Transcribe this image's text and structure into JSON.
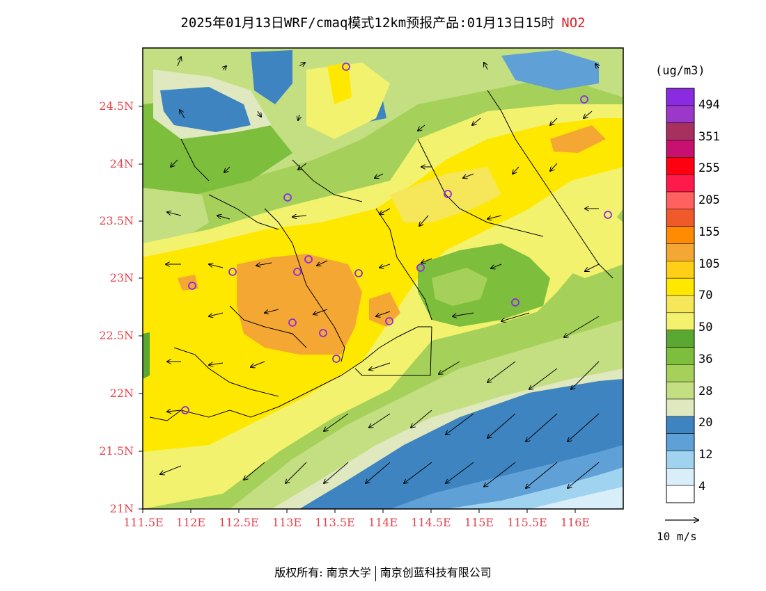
{
  "title": {
    "main": "2025年01月13日WRF/cmaq模式12km预报产品:01月13日15时",
    "pollutant": "NO2"
  },
  "axes": {
    "y_labels": [
      "24.5N",
      "24N",
      "23.5N",
      "23N",
      "22.5N",
      "22N",
      "21.5N",
      "21N"
    ],
    "x_labels": [
      "111.5E",
      "112E",
      "112.5E",
      "113E",
      "113.5E",
      "114E",
      "114.5E",
      "115E",
      "115.5E",
      "116E"
    ]
  },
  "legend": {
    "unit": "(ug/m3)",
    "labels": [
      "494",
      "351",
      "255",
      "205",
      "155",
      "105",
      "70",
      "50",
      "36",
      "28",
      "20",
      "12",
      "4"
    ],
    "colors": [
      "#8a2be2",
      "#9b37c9",
      "#a8305f",
      "#c81070",
      "#ff0010",
      "#ff1a4b",
      "#ff6060",
      "#f05a2a",
      "#ff8c00",
      "#f5a733",
      "#ffcf17",
      "#ffe800",
      "#f5e65a",
      "#f2f26e",
      "#5aa832",
      "#7dbf3c",
      "#a5d15a",
      "#c4de82",
      "#dfe8bf",
      "#3d84c0",
      "#5fa1d6",
      "#9fd3f0",
      "#d8eef8",
      "#ffffff"
    ]
  },
  "wind": {
    "reference_label": "10 m/s"
  },
  "footer": {
    "left": "版权所有: 南京大学",
    "right": "南京创蓝科技有限公司"
  }
}
